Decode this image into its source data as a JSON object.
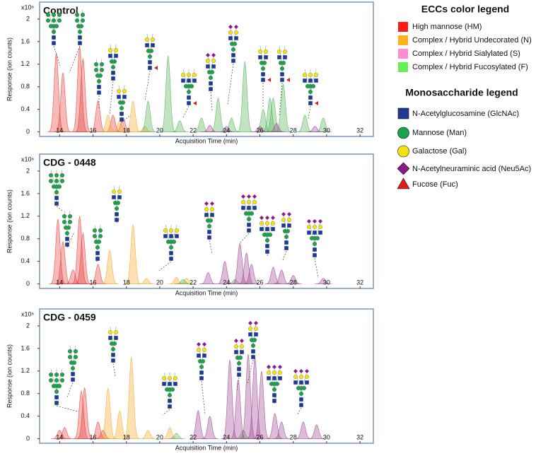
{
  "chart_data": [
    {
      "type": "area",
      "title": "Control",
      "xlabel": "Acquisition Time (min)",
      "ylabel": "Response (ion counts)",
      "y_scale_label": "x10⁶",
      "xlim": [
        12.8,
        32.8
      ],
      "ylim": [
        -0.08,
        2.3
      ],
      "xticks": [
        14,
        16,
        18,
        20,
        22,
        24,
        26,
        28,
        30,
        32
      ],
      "yticks": [
        0,
        0.4,
        0.8,
        1.2,
        1.6,
        2
      ],
      "series": [
        {
          "color": "#e53935",
          "x": [
            13.8,
            14.2,
            15.2,
            15.4,
            16.3,
            17.2,
            17.8
          ],
          "values": [
            1.4,
            1.05,
            1.52,
            1.3,
            0.55,
            0.3,
            0.25
          ]
        },
        {
          "color": "#f5a623",
          "x": [
            16.9,
            17.6,
            18.4,
            19.1
          ],
          "values": [
            0.3,
            0.2,
            0.55,
            0.1
          ]
        },
        {
          "color": "#4caf50",
          "x": [
            19.3,
            20.5,
            21.2,
            22.5,
            23.5,
            24.3,
            25.1,
            26.2,
            26.6,
            26.8,
            27.4,
            28.7,
            29.8
          ],
          "values": [
            0.55,
            1.35,
            0.2,
            0.25,
            0.6,
            0.25,
            1.25,
            0.4,
            0.6,
            0.6,
            0.85,
            0.3,
            0.25
          ]
        },
        {
          "color": "#9b3e8e",
          "x": [
            23.0,
            24.0,
            26.0,
            27.0,
            29.3
          ],
          "values": [
            0.12,
            0.1,
            0.1,
            0.15,
            0.1
          ]
        }
      ]
    },
    {
      "type": "area",
      "title": "CDG - 0448",
      "xlabel": "Acquisition Time (min)",
      "ylabel": "Response (ion counts)",
      "y_scale_label": "x10⁶",
      "xlim": [
        12.8,
        32.8
      ],
      "ylim": [
        -0.08,
        2.3
      ],
      "xticks": [
        14,
        16,
        18,
        20,
        22,
        24,
        26,
        28,
        30,
        32
      ],
      "yticks": [
        0,
        0.4,
        0.8,
        1.2,
        1.6,
        2
      ],
      "series": [
        {
          "color": "#e53935",
          "x": [
            13.9,
            14.2,
            14.8,
            15.2,
            15.4,
            16.3
          ],
          "values": [
            1.15,
            0.75,
            0.25,
            1.2,
            0.9,
            0.35
          ]
        },
        {
          "color": "#f5a623",
          "x": [
            17.0,
            18.4,
            19.2,
            21.0,
            21.6
          ],
          "values": [
            0.6,
            1.05,
            0.1,
            0.12,
            0.1
          ]
        },
        {
          "color": "#4caf50",
          "x": [
            21.4,
            24.5
          ],
          "values": [
            0.08,
            0.08
          ]
        },
        {
          "color": "#9b3e8e",
          "x": [
            22.9,
            23.9,
            24.8,
            25.2,
            25.5,
            26.8,
            27.3,
            28.0,
            29.8
          ],
          "values": [
            0.2,
            0.4,
            0.72,
            0.55,
            0.35,
            0.3,
            0.25,
            0.15,
            0.1
          ]
        }
      ]
    },
    {
      "type": "area",
      "title": "CDG - 0459",
      "xlabel": "Acquisition Time (min)",
      "ylabel": "Response (ion counts)",
      "y_scale_label": "x10⁶",
      "xlim": [
        12.8,
        32.8
      ],
      "ylim": [
        -0.08,
        2.3
      ],
      "xticks": [
        14,
        16,
        18,
        20,
        22,
        24,
        26,
        28,
        30,
        32
      ],
      "yticks": [
        0,
        0.4,
        0.8,
        1.2,
        1.6,
        2
      ],
      "series": [
        {
          "color": "#e53935",
          "x": [
            14.0,
            14.3,
            15.3,
            15.5,
            16.3,
            16.6
          ],
          "values": [
            0.15,
            0.2,
            0.85,
            0.9,
            0.3,
            0.15
          ]
        },
        {
          "color": "#f5a623",
          "x": [
            16.9,
            17.6,
            18.3,
            19.3,
            20.6
          ],
          "values": [
            0.9,
            0.5,
            1.45,
            0.15,
            0.2
          ]
        },
        {
          "color": "#4caf50",
          "x": [
            21.0,
            25.0
          ],
          "values": [
            0.1,
            0.15
          ]
        },
        {
          "color": "#9b3e8e",
          "x": [
            22.3,
            23.0,
            24.2,
            24.7,
            25.3,
            25.7,
            26.1,
            26.9,
            27.3,
            28.6,
            29.4
          ],
          "values": [
            0.5,
            0.4,
            1.4,
            1.05,
            1.5,
            1.45,
            1.2,
            0.45,
            0.3,
            0.3,
            0.25
          ]
        }
      ]
    }
  ],
  "color_legend": {
    "title": "ECCs color legend",
    "items": [
      {
        "label": "High mannose (HM)",
        "color": "#ff1a1a"
      },
      {
        "label": "Complex / Hybrid Undecorated (N)",
        "color": "#ffb31a"
      },
      {
        "label": "Complex / Hybrid Sialylated (S)",
        "color": "#ff8ccf"
      },
      {
        "label": "Complex / Hybrid Fucosylated (F)",
        "color": "#66ee55"
      }
    ]
  },
  "monosaccharide_legend": {
    "title": "Monosaccharide legend",
    "items": [
      "N-Acetylglucosamine (GlcNAc)",
      "Mannose (Man)",
      "Galactose (Gal)",
      "N-Acetylneuraminic acid (Neu5Ac)",
      "Fucose (Fuc)"
    ]
  }
}
